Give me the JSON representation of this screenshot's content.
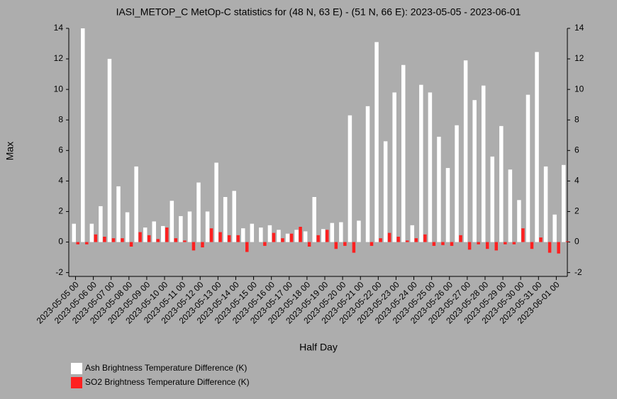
{
  "chart_data": {
    "type": "bar",
    "title": "IASI_METOP_C MetOp-C statistics for (48 N, 63 E) - (51 N, 66 E): 2023-05-05 - 2023-06-01",
    "x_label": "Half Day",
    "y_label": "Max",
    "categories": [
      "2023-05-05 00",
      null,
      "2023-05-06 00",
      null,
      "2023-05-07 00",
      null,
      "2023-05-08 00",
      null,
      "2023-05-09 00",
      null,
      "2023-05-10 00",
      null,
      "2023-05-11 00",
      null,
      "2023-05-12 00",
      null,
      "2023-05-13 00",
      null,
      "2023-05-14 00",
      null,
      "2023-05-15 00",
      null,
      "2023-05-16 00",
      null,
      "2023-05-17 00",
      null,
      "2023-05-18 00",
      null,
      "2023-05-19 00",
      null,
      "2023-05-20 00",
      null,
      "2023-05-21 00",
      null,
      "2023-05-22 00",
      null,
      "2023-05-23 00",
      null,
      "2023-05-24 00",
      null,
      "2023-05-25 00",
      null,
      "2023-05-26 00",
      null,
      "2023-05-27 00",
      null,
      "2023-05-28 00",
      null,
      "2023-05-29 00",
      null,
      "2023-05-30 00",
      null,
      "2023-05-31 00",
      null,
      "2023-06-01 00",
      null
    ],
    "series": [
      {
        "name": "Ash Brightness Temperature Difference (K)",
        "color": "#ffffff",
        "values": [
          1.2,
          14.0,
          1.2,
          2.35,
          12.0,
          3.65,
          1.95,
          4.95,
          0.95,
          1.35,
          1.05,
          2.7,
          1.7,
          2.0,
          3.9,
          2.0,
          5.2,
          2.95,
          3.35,
          0.9,
          1.2,
          0.95,
          1.1,
          0.8,
          0.55,
          0.8,
          0.7,
          2.95,
          0.85,
          1.25,
          1.3,
          8.3,
          1.4,
          8.9,
          13.1,
          6.6,
          9.8,
          11.6,
          1.1,
          10.3,
          9.8,
          6.9,
          4.85,
          7.65,
          11.9,
          9.3,
          10.25,
          5.6,
          7.6,
          4.75,
          2.75,
          9.65,
          12.45,
          4.95,
          1.8,
          5.05
        ]
      },
      {
        "name": "SO2 Brightness Temperature Difference (K)",
        "color": "#ff2020",
        "values": [
          -0.15,
          -0.15,
          0.5,
          0.35,
          0.25,
          0.25,
          -0.3,
          0.65,
          0.45,
          0.2,
          0.95,
          0.25,
          0.1,
          -0.55,
          -0.35,
          0.9,
          0.65,
          0.45,
          0.45,
          -0.65,
          0.0,
          -0.25,
          0.6,
          0.25,
          0.55,
          1.0,
          -0.3,
          0.45,
          0.8,
          -0.45,
          -0.25,
          -0.7,
          0.0,
          -0.25,
          0.25,
          0.6,
          0.35,
          0.1,
          0.25,
          0.5,
          -0.25,
          -0.2,
          -0.25,
          0.45,
          -0.5,
          -0.15,
          -0.45,
          -0.55,
          -0.15,
          -0.15,
          0.9,
          -0.45,
          0.3,
          -0.7,
          -0.75,
          0.05
        ]
      }
    ],
    "ylim": [
      -2.25,
      14
    ],
    "yticks": [
      -2,
      0,
      2,
      4,
      6,
      8,
      10,
      12,
      14
    ],
    "y2lim": [
      -2.25,
      14
    ],
    "y2ticks": [
      -2,
      0,
      2,
      4,
      6,
      8,
      10,
      12,
      14
    ],
    "legend": "bottom-left"
  }
}
